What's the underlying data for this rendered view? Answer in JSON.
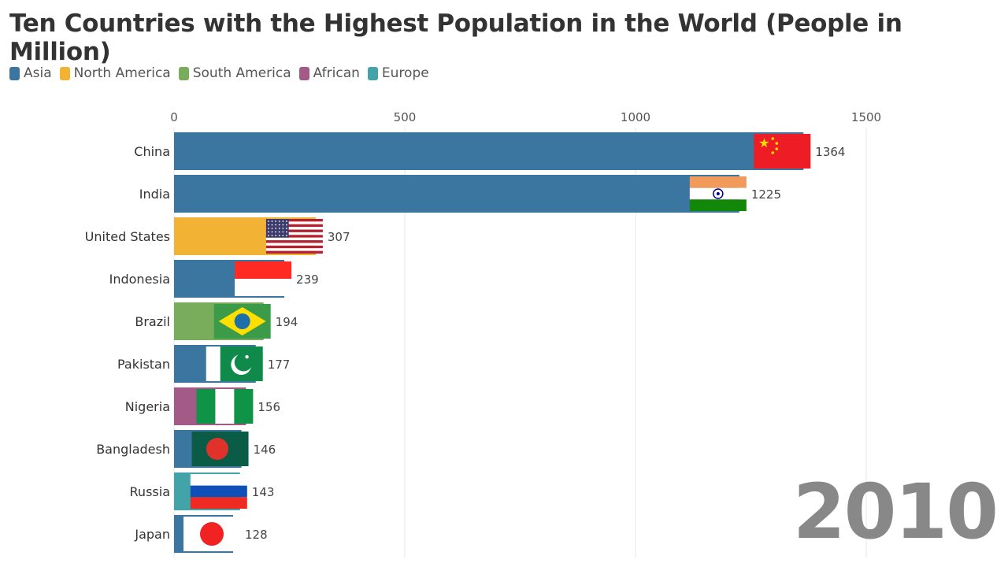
{
  "chart_data": {
    "type": "bar",
    "orientation": "horizontal",
    "title": "Ten Countries with the Highest Population in the World (People in Million)",
    "xlabel": "",
    "ylabel": "",
    "xlim": [
      0,
      1500
    ],
    "x_ticks": [
      0,
      500,
      1000,
      1500
    ],
    "grid": true,
    "legend_placement": "top-left",
    "legend": [
      {
        "label": "Asia",
        "color": "#3a76a0"
      },
      {
        "label": "North America",
        "color": "#f2b233"
      },
      {
        "label": "South America",
        "color": "#79ad5c"
      },
      {
        "label": "African",
        "color": "#a35a86"
      },
      {
        "label": "Europe",
        "color": "#42a4a8"
      }
    ],
    "categories": [
      "China",
      "India",
      "United States",
      "Indonesia",
      "Brazil",
      "Pakistan",
      "Nigeria",
      "Bangladesh",
      "Russia",
      "Japan"
    ],
    "values": [
      1364,
      1225,
      307,
      239,
      194,
      177,
      156,
      146,
      143,
      128
    ],
    "regions": [
      "Asia",
      "Asia",
      "North America",
      "Asia",
      "South America",
      "Asia",
      "African",
      "Asia",
      "Europe",
      "Asia"
    ],
    "flags": [
      "china",
      "india",
      "usa",
      "indonesia",
      "brazil",
      "pakistan",
      "nigeria",
      "bangladesh",
      "russia",
      "japan"
    ],
    "year": "2010"
  }
}
